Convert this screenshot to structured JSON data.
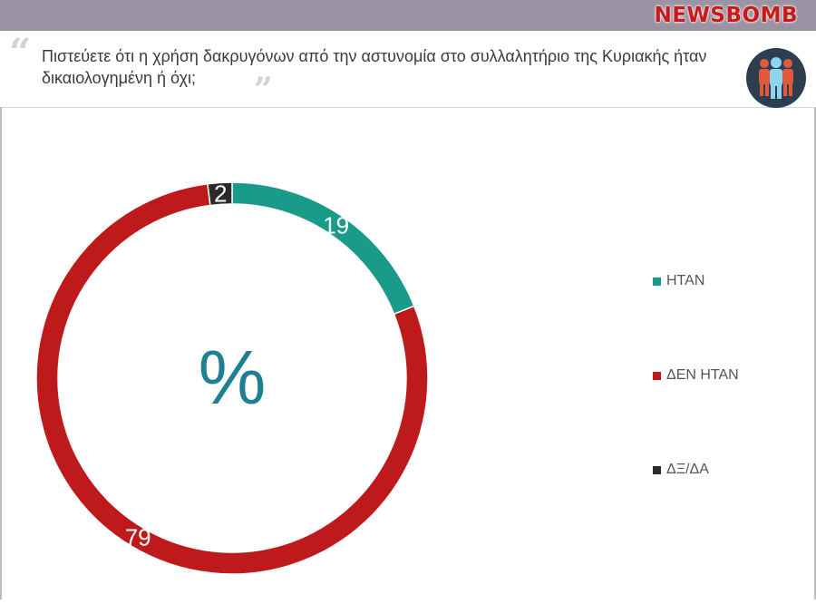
{
  "header": {
    "logo_text": "NEWSBOMB",
    "bar_color": "#9a93a3"
  },
  "question": {
    "text": "Πιστεύετε ότι η χρήση δακρυγόνων από την αστυνομία στο συλλαλητήριο της Κυριακής ήταν δικαιολογημένη ή όχι;",
    "badge_icon": "people-group-icon"
  },
  "chart_data": {
    "type": "pie",
    "style": "donut",
    "center_label": "%",
    "categories": [
      "ΗΤΑΝ",
      "ΔΕΝ ΗΤΑΝ",
      "ΔΞ/ΔΑ"
    ],
    "values": [
      19,
      79,
      2
    ],
    "colors": [
      "#1a9a88",
      "#be1a1c",
      "#2a2a2a"
    ],
    "legend_position": "right"
  }
}
